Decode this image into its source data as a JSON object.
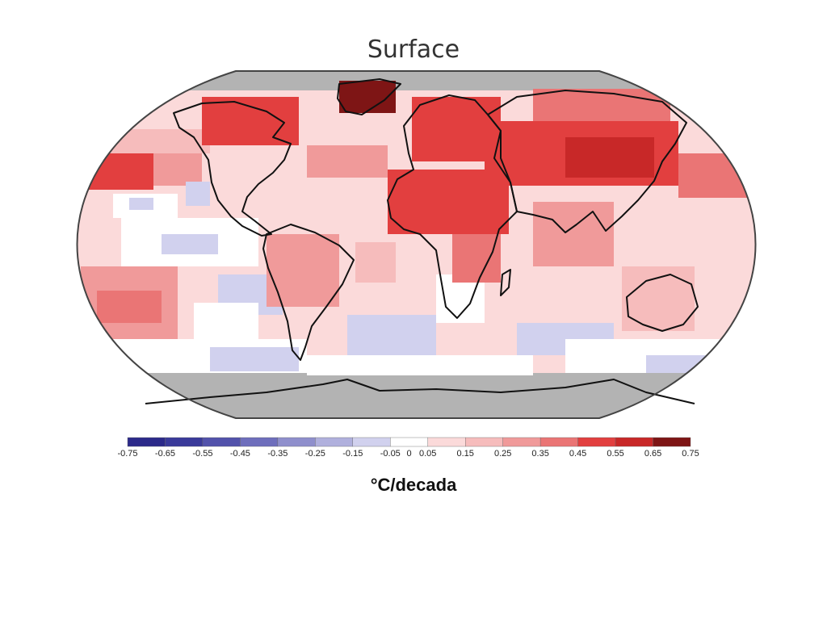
{
  "map": {
    "title": "Surface",
    "units_label": "°C/decada",
    "projection": "robinson",
    "colors": {
      "missing": "#b3b3b3",
      "outline": "#444444",
      "coast": "#111111"
    }
  },
  "legend": {
    "bins": [
      {
        "from": -0.75,
        "to": -0.65,
        "color": "#2c2a8a"
      },
      {
        "from": -0.65,
        "to": -0.55,
        "color": "#3a3a9a"
      },
      {
        "from": -0.55,
        "to": -0.45,
        "color": "#5252ab"
      },
      {
        "from": -0.45,
        "to": -0.35,
        "color": "#6e6ebc"
      },
      {
        "from": -0.35,
        "to": -0.25,
        "color": "#8f8fcc"
      },
      {
        "from": -0.25,
        "to": -0.15,
        "color": "#b0b0dd"
      },
      {
        "from": -0.15,
        "to": -0.05,
        "color": "#d1d1ee"
      },
      {
        "from": -0.05,
        "to": 0.05,
        "color": "#ffffff"
      },
      {
        "from": 0.05,
        "to": 0.15,
        "color": "#fbdada"
      },
      {
        "from": 0.15,
        "to": 0.25,
        "color": "#f6bcbc"
      },
      {
        "from": 0.25,
        "to": 0.35,
        "color": "#f09a9a"
      },
      {
        "from": 0.35,
        "to": 0.45,
        "color": "#ea7575"
      },
      {
        "from": 0.45,
        "to": 0.55,
        "color": "#e23f3f"
      },
      {
        "from": 0.55,
        "to": 0.65,
        "color": "#c82828"
      },
      {
        "from": 0.65,
        "to": 0.75,
        "color": "#7e1515"
      }
    ],
    "ticks": [
      "-0.75",
      "-0.65",
      "-0.55",
      "-0.45",
      "-0.35",
      "-0.25",
      "-0.15",
      "-0.05",
      "0",
      "0.05",
      "0.15",
      "0.25",
      "0.35",
      "0.45",
      "0.55",
      "0.65",
      "0.75"
    ],
    "tick_values": [
      -0.75,
      -0.65,
      -0.55,
      -0.45,
      -0.35,
      -0.25,
      -0.15,
      -0.05,
      0,
      0.05,
      0.15,
      0.25,
      0.35,
      0.45,
      0.55,
      0.65,
      0.75
    ]
  }
}
